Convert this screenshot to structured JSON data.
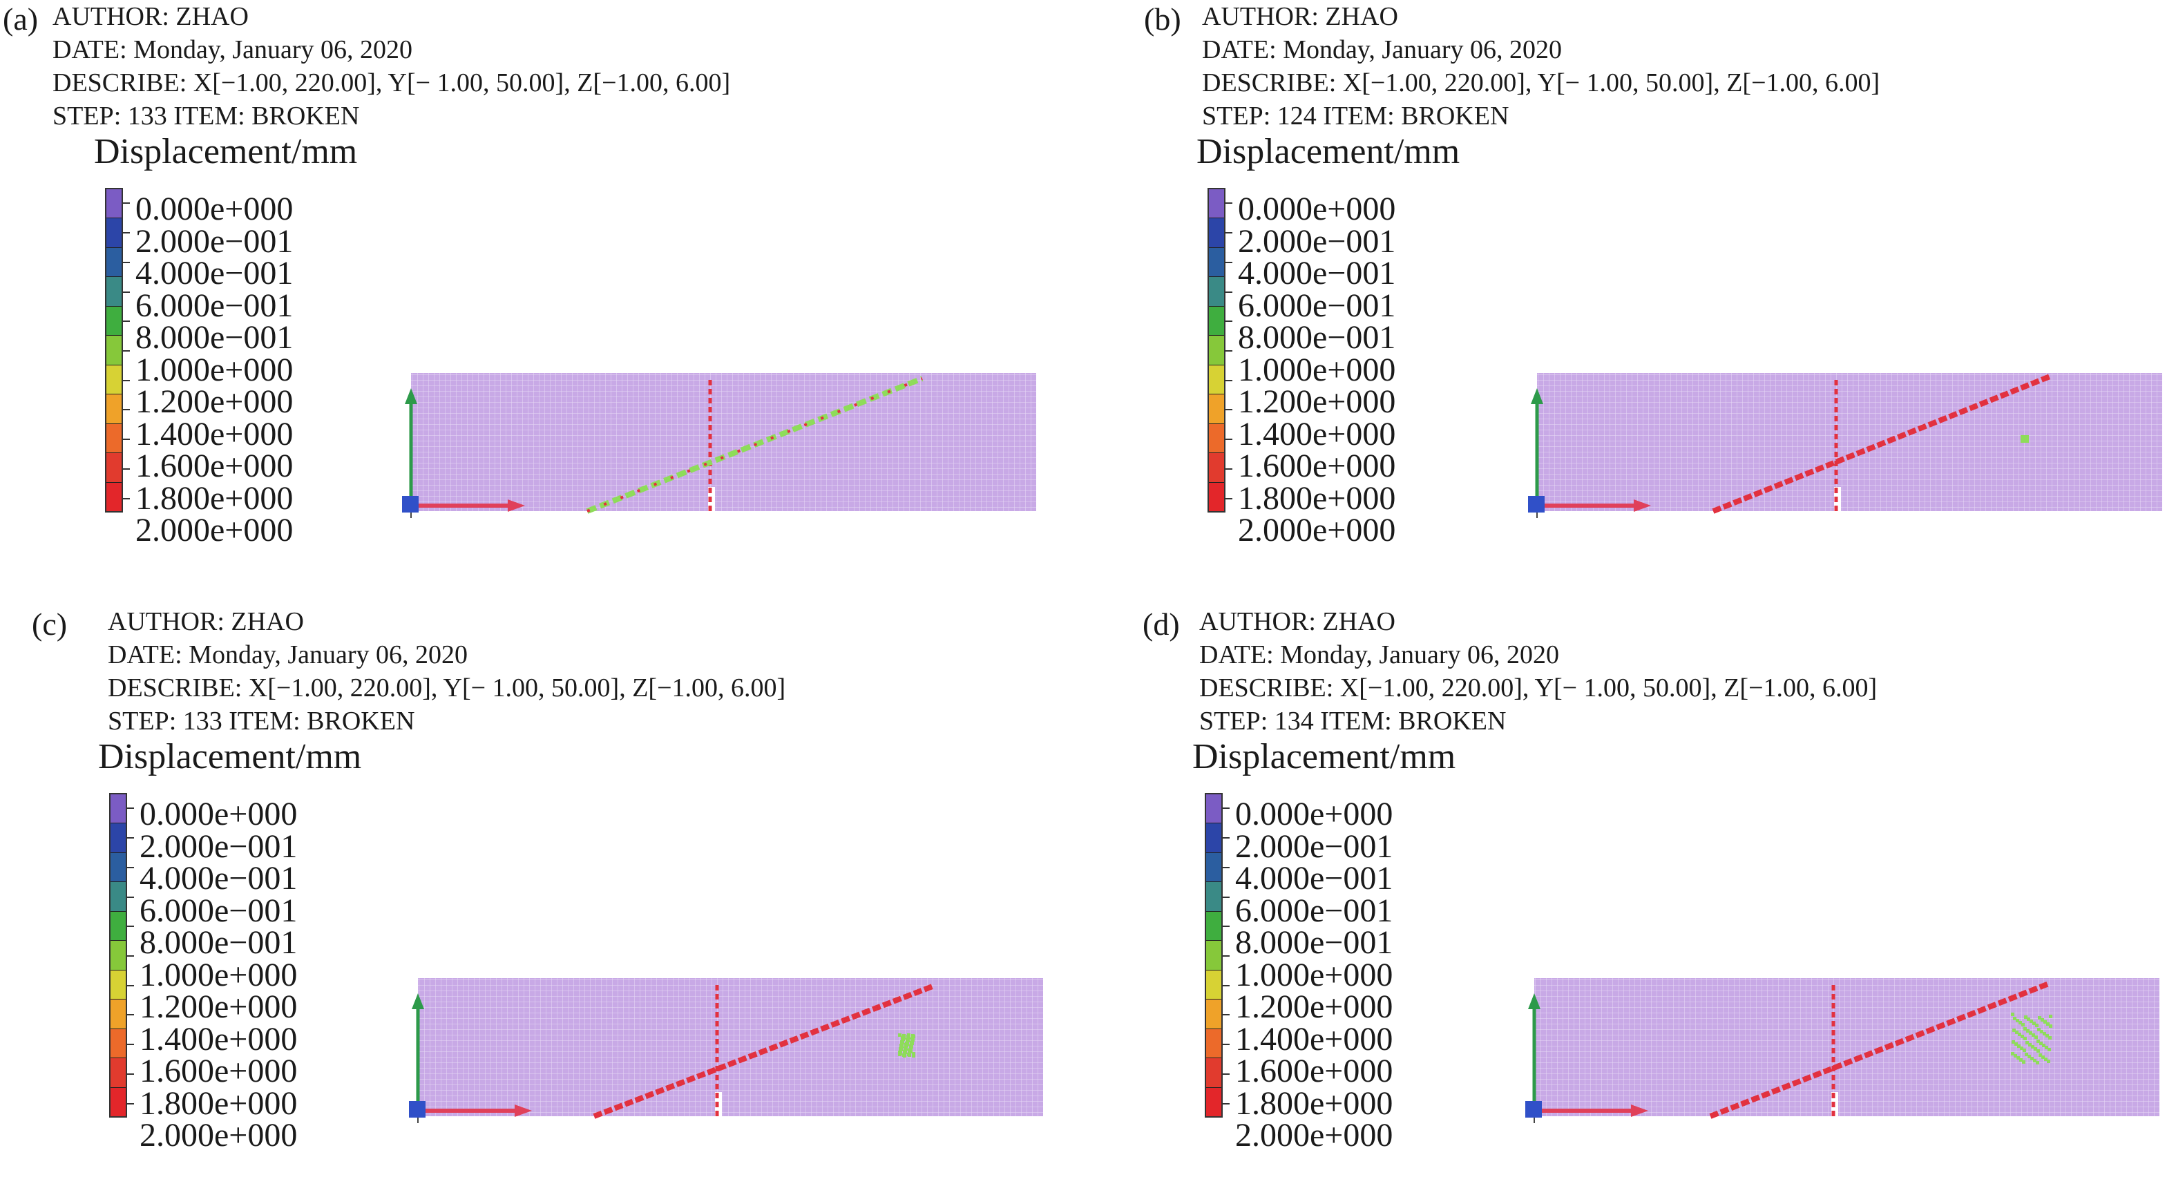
{
  "panels": [
    {
      "label": "(a)",
      "author": "AUTHOR: ZHAO",
      "date": "DATE: Monday, January 06, 2020",
      "describe": "DESCRIBE: X[−1.00, 220.00], Y[− 1.00, 50.00], Z[−1.00, 6.00]",
      "step": "STEP: 133 ITEM: BROKEN",
      "legend_title": "Displacement/mm"
    },
    {
      "label": "(b)",
      "author": "AUTHOR: ZHAO",
      "date": "DATE: Monday, January 06, 2020",
      "describe": "DESCRIBE: X[−1.00, 220.00], Y[− 1.00, 50.00], Z[−1.00, 6.00]",
      "step": "STEP: 124 ITEM: BROKEN",
      "legend_title": "Displacement/mm"
    },
    {
      "label": "(c)",
      "author": "AUTHOR: ZHAO",
      "date": "DATE: Monday, January 06, 2020",
      "describe": "DESCRIBE: X[−1.00, 220.00], Y[− 1.00, 50.00], Z[−1.00, 6.00]",
      "step": "STEP: 133 ITEM: BROKEN",
      "legend_title": "Displacement/mm"
    },
    {
      "label": "(d)",
      "author": "AUTHOR: ZHAO",
      "date": "DATE: Monday, January 06, 2020",
      "describe": "DESCRIBE: X[−1.00, 220.00], Y[− 1.00, 50.00], Z[−1.00, 6.00]",
      "step": "STEP: 134 ITEM: BROKEN",
      "legend_title": "Displacement/mm"
    }
  ],
  "legend_levels": [
    "0.000e+000",
    "2.000e−001",
    "4.000e−001",
    "6.000e−001",
    "8.000e−001",
    "1.000e+000",
    "1.200e+000",
    "1.400e+000",
    "1.600e+000",
    "1.800e+000",
    "2.000e+000"
  ],
  "legend_colors": [
    "#7b5cc4",
    "#2c45a8",
    "#2b5ea0",
    "#3a8a86",
    "#3fae3f",
    "#86c83a",
    "#d7d234",
    "#efa229",
    "#ec6a2a",
    "#e13b2e",
    "#e3262a"
  ],
  "colors": {
    "mesh": "#c8a9e6",
    "crack": "#e2313f",
    "damage_green": "#8edc5a",
    "axis_red": "#e0405a",
    "axis_green": "#2d9a4a",
    "axis_blue": "#3050c8"
  }
}
